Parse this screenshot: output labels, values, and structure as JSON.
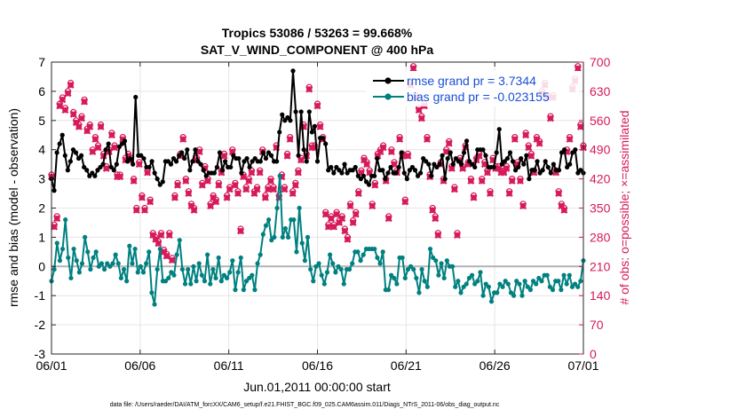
{
  "chart_data": {
    "type": "line",
    "title": "Tropics 53086 / 53263 = 99.668%",
    "subtitle": "SAT_V_WIND_COMPONENT @ 400 hPa",
    "xlabel": "Jun.01,2011 00:00:00 start",
    "ylabel_left": "rmse and bias (model - observation)",
    "ylabel_right": "# of obs: o=possible; ×=assimilated",
    "x_ticks": [
      "06/01",
      "06/06",
      "06/11",
      "06/16",
      "06/21",
      "06/26",
      "07/01"
    ],
    "xlim_days": [
      0,
      30
    ],
    "ylim_left": [
      -3,
      7
    ],
    "y_ticks_left": [
      "-3",
      "-2",
      "-1",
      "0",
      "1",
      "2",
      "3",
      "4",
      "5",
      "6",
      "7"
    ],
    "ylim_right": [
      0,
      700
    ],
    "y_ticks_right": [
      "0",
      "70",
      "140",
      "210",
      "280",
      "350",
      "420",
      "490",
      "560",
      "630",
      "700"
    ],
    "legend": [
      {
        "label": "rmse grand pr = 3.7344",
        "color": "#000000"
      },
      {
        "label": "bias grand pr = -0.023155",
        "color": "#008080"
      }
    ],
    "series": [
      {
        "name": "rmse",
        "color": "#000000",
        "values": [
          3.0,
          2.6,
          3.9,
          4.2,
          4.5,
          3.8,
          3.3,
          3.6,
          4.0,
          3.9,
          3.7,
          3.8,
          3.4,
          3.3,
          3.1,
          3.2,
          3.1,
          3.3,
          3.4,
          3.5,
          4.0,
          4.2,
          3.4,
          3.3,
          3.5,
          4.1,
          4.2,
          4.3,
          3.6,
          3.7,
          3.5,
          5.8,
          3.8,
          3.8,
          3.7,
          3.4,
          3.4,
          3.6,
          3.2,
          3.0,
          2.8,
          2.9,
          3.6,
          3.6,
          3.5,
          3.7,
          3.6,
          3.8,
          3.9,
          3.7,
          4.0,
          3.3,
          3.6,
          4.0,
          3.6,
          3.5,
          3.3,
          3.1,
          3.2,
          3.2,
          3.2,
          3.4,
          3.9,
          3.3,
          3.6,
          3.4,
          3.4,
          3.8,
          3.7,
          3.7,
          3.2,
          3.6,
          3.7,
          3.4,
          3.6,
          3.7,
          3.6,
          3.6,
          3.9,
          3.7,
          3.9,
          3.8,
          3.6,
          3.6,
          4.6,
          5.2,
          5.0,
          5.1,
          5.0,
          6.7,
          5.3,
          3.8,
          5.3,
          4.0,
          3.6,
          5.3,
          4.6,
          4.8,
          3.6,
          4.4,
          4.4,
          4.2,
          3.3,
          3.4,
          3.2,
          3.4,
          3.3,
          3.2,
          3.5,
          3.2,
          3.3,
          3.3,
          3.4,
          3.1,
          3.0,
          3.1,
          2.9,
          2.8,
          3.1,
          3.1,
          3.7,
          3.3,
          3.3,
          3.0,
          3.2,
          3.4,
          3.2,
          3.2,
          3.4,
          3.9,
          3.2,
          3.0,
          3.3,
          3.4,
          3.3,
          3.1,
          3.2,
          3.7,
          3.6,
          3.5,
          3.1,
          3.5,
          3.4,
          3.5,
          3.8,
          3.0,
          3.7,
          3.9,
          3.5,
          3.7,
          3.6,
          3.5,
          3.9,
          4.3,
          3.6,
          3.5,
          3.4,
          4.0,
          4.0,
          4.0,
          3.8,
          3.4,
          3.4,
          3.4,
          3.9,
          4.7,
          3.5,
          3.6,
          3.7,
          3.9,
          3.6,
          3.3,
          3.4,
          3.7,
          3.5,
          3.8,
          3.0,
          3.3,
          3.3,
          3.6,
          3.2,
          3.3,
          3.6,
          3.4,
          3.2,
          3.5,
          3.3,
          3.3,
          3.9,
          4.0,
          3.4,
          3.5,
          3.9,
          4.0,
          3.2,
          3.3,
          3.2
        ]
      },
      {
        "name": "bias",
        "color": "#008080",
        "values": [
          -0.5,
          -0.1,
          0.8,
          0.2,
          0.6,
          1.6,
          0.3,
          -0.4,
          0.6,
          0.2,
          -0.2,
          0.1,
          1.0,
          0.5,
          -0.1,
          0.3,
          0.5,
          0.0,
          0.1,
          -0.1,
          0.1,
          0.0,
          0.1,
          0.4,
          0.1,
          -0.4,
          -0.1,
          -0.5,
          0.7,
          0.1,
          0.6,
          -0.2,
          0.0,
          -0.2,
          0.1,
          0.5,
          -0.9,
          -1.3,
          -0.1,
          0.6,
          -0.5,
          -0.5,
          -0.4,
          -0.2,
          -0.3,
          0.4,
          0.9,
          -0.1,
          -0.6,
          -0.1,
          -0.6,
          0.0,
          -0.5,
          0.1,
          -0.3,
          -0.5,
          0.4,
          -0.6,
          -0.1,
          -0.4,
          0.3,
          -0.5,
          -0.3,
          -0.4,
          -0.2,
          0.2,
          -0.8,
          -0.2,
          0.3,
          -0.8,
          -0.5,
          -0.4,
          -0.3,
          -0.8,
          0.1,
          0.4,
          1.1,
          1.4,
          1.6,
          0.9,
          1.0,
          2.0,
          3.1,
          1.0,
          1.3,
          1.0,
          1.6,
          1.6,
          0.5,
          2.0,
          0.8,
          0.2,
          1.0,
          -0.1,
          -0.5,
          0.0,
          0.1,
          -0.3,
          -0.6,
          -0.2,
          0.4,
          0.1,
          -0.2,
          0.0,
          -0.1,
          -0.6,
          -0.1,
          -0.1,
          0.1,
          0.5,
          0.5,
          0.2,
          0.4,
          0.6,
          0.6,
          0.6,
          0.6,
          0.3,
          0.1,
          0.5,
          -0.8,
          -0.8,
          -0.3,
          -0.4,
          -0.6,
          0.3,
          0.3,
          -0.4,
          -0.1,
          0.0,
          -0.1,
          -0.4,
          -0.9,
          -0.1,
          -0.5,
          -0.7,
          0.6,
          0.3,
          0.2,
          -0.3,
          0.1,
          -0.4,
          0.2,
          0.0,
          0.0,
          -0.7,
          -0.5,
          -0.9,
          -0.7,
          -0.6,
          -0.4,
          -0.3,
          -0.6,
          -0.5,
          -0.2,
          -1.0,
          -0.6,
          -0.7,
          -1.2,
          -0.9,
          -0.9,
          -0.6,
          -0.7,
          -0.5,
          -0.6,
          -0.9,
          -1.0,
          -0.5,
          -0.6,
          -1.0,
          -0.5,
          -0.7,
          -0.8,
          -0.5,
          -0.6,
          -0.4,
          -0.5,
          -0.3,
          -0.3,
          -0.7,
          -0.8,
          -0.5,
          -0.5,
          -0.8,
          -0.3,
          -0.6,
          -0.3,
          -0.7,
          -0.6,
          -0.7,
          -0.5,
          0.2
        ]
      },
      {
        "name": "possible",
        "color": "#d61a5a",
        "marker": "o",
        "values": [
          430,
          310,
          330,
          600,
          615,
          590,
          630,
          650,
          580,
          560,
          550,
          570,
          610,
          540,
          550,
          490,
          520,
          500,
          550,
          480,
          450,
          490,
          530,
          500,
          430,
          430,
          520,
          470,
          480,
          470,
          420,
          350,
          460,
          380,
          350,
          440,
          370,
          290,
          280,
          270,
          290,
          250,
          240,
          290,
          230,
          380,
          410,
          480,
          520,
          420,
          390,
          360,
          350,
          470,
          490,
          410,
          450,
          420,
          360,
          380,
          370,
          410,
          440,
          480,
          380,
          400,
          490,
          410,
          390,
          300,
          430,
          400,
          420,
          440,
          390,
          400,
          440,
          490,
          380,
          400,
          420,
          400,
          500,
          380,
          430,
          400,
          480,
          520,
          390,
          410,
          440,
          470,
          550,
          480,
          640,
          500,
          500,
          600,
          550,
          520,
          340,
          310,
          330,
          310,
          340,
          320,
          330,
          300,
          280,
          360,
          320,
          340,
          390,
          440,
          470,
          460,
          440,
          360,
          410,
          480,
          490,
          500,
          420,
          330,
          490,
          460,
          440,
          520,
          480,
          370,
          480,
          650,
          690,
          620,
          590,
          570,
          600,
          520,
          430,
          350,
          330,
          290,
          460,
          420,
          490,
          510,
          450,
          400,
          290,
          470,
          450,
          500,
          460,
          420,
          380,
          470,
          480,
          420,
          460,
          440,
          390,
          470,
          450,
          450,
          440,
          440,
          450,
          390,
          420,
          520,
          460,
          420,
          360,
          530,
          500,
          480,
          440,
          520,
          510,
          630,
          650,
          620,
          570,
          620,
          440,
          390,
          360,
          350,
          490,
          520,
          640,
          660,
          690,
          550,
          500
        ]
      },
      {
        "name": "assimilated",
        "color": "#d61a5a",
        "marker": "x",
        "values": [
          425,
          305,
          325,
          595,
          610,
          585,
          625,
          645,
          575,
          555,
          545,
          565,
          605,
          535,
          545,
          485,
          515,
          495,
          545,
          475,
          445,
          485,
          525,
          495,
          425,
          425,
          515,
          465,
          475,
          465,
          415,
          345,
          455,
          375,
          345,
          435,
          365,
          285,
          275,
          265,
          285,
          245,
          235,
          285,
          225,
          375,
          405,
          475,
          515,
          415,
          385,
          355,
          345,
          465,
          485,
          405,
          445,
          415,
          355,
          375,
          365,
          405,
          435,
          475,
          375,
          395,
          485,
          405,
          385,
          295,
          425,
          395,
          415,
          435,
          385,
          395,
          435,
          485,
          375,
          395,
          415,
          395,
          495,
          375,
          425,
          395,
          475,
          515,
          385,
          405,
          435,
          465,
          545,
          475,
          635,
          495,
          495,
          595,
          545,
          515,
          335,
          305,
          325,
          305,
          335,
          315,
          325,
          295,
          275,
          355,
          315,
          335,
          385,
          435,
          465,
          455,
          435,
          355,
          405,
          475,
          485,
          495,
          415,
          325,
          485,
          455,
          435,
          515,
          475,
          365,
          475,
          645,
          685,
          615,
          585,
          565,
          595,
          515,
          425,
          345,
          325,
          285,
          455,
          415,
          485,
          505,
          445,
          395,
          285,
          465,
          445,
          495,
          455,
          415,
          375,
          465,
          475,
          415,
          455,
          435,
          385,
          465,
          445,
          445,
          435,
          435,
          445,
          385,
          415,
          515,
          455,
          415,
          355,
          525,
          495,
          475,
          435,
          515,
          505,
          625,
          645,
          615,
          565,
          615,
          435,
          385,
          355,
          345,
          485,
          515,
          635,
          655,
          685,
          545,
          495
        ]
      }
    ],
    "footer": "data file: /Users/raeder/DAI/ATM_forcXX/CAM6_setup/f.e21.FHIST_BGC.f09_025.CAM6assim.011/Diags_NTrS_2011-06/obs_diag_output.nc"
  }
}
